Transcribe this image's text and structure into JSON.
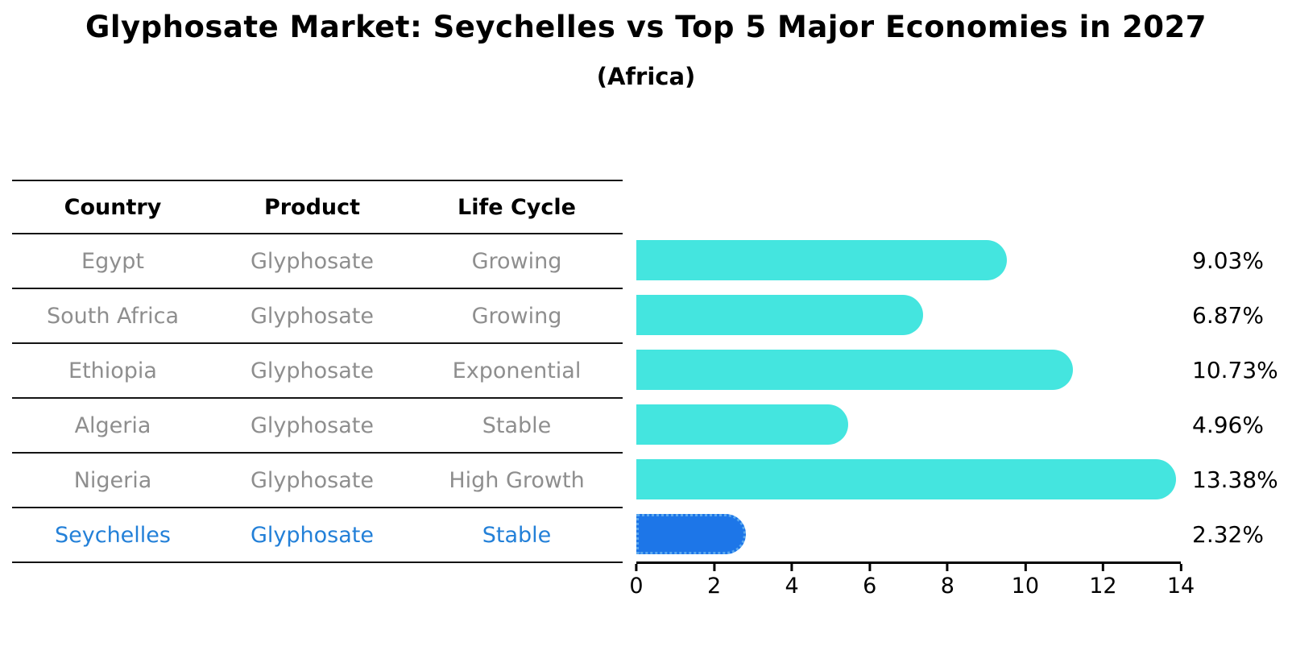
{
  "title": "Glyphosate Market: Seychelles vs Top 5 Major Economies in 2027",
  "subtitle": "(Africa)",
  "table": {
    "headers": [
      "Country",
      "Product",
      "Life Cycle"
    ],
    "rows": [
      {
        "country": "Egypt",
        "product": "Glyphosate",
        "life_cycle": "Growing",
        "highlight": false
      },
      {
        "country": "South Africa",
        "product": "Glyphosate",
        "life_cycle": "Growing",
        "highlight": false
      },
      {
        "country": "Ethiopia",
        "product": "Glyphosate",
        "life_cycle": "Exponential",
        "highlight": false
      },
      {
        "country": "Algeria",
        "product": "Glyphosate",
        "life_cycle": "Stable",
        "highlight": false
      },
      {
        "country": "Nigeria",
        "product": "Glyphosate",
        "life_cycle": "High Growth",
        "highlight": false
      },
      {
        "country": "Seychelles",
        "product": "Glyphosate",
        "life_cycle": "Stable",
        "highlight": true
      }
    ]
  },
  "chart_data": {
    "type": "bar",
    "orientation": "horizontal",
    "title": "Glyphosate Market: Seychelles vs Top 5 Major Economies in 2027",
    "subtitle": "(Africa)",
    "categories": [
      "Egypt",
      "South Africa",
      "Ethiopia",
      "Algeria",
      "Nigeria",
      "Seychelles"
    ],
    "values": [
      9.03,
      6.87,
      10.73,
      4.96,
      13.38,
      2.32
    ],
    "labels": [
      "9.03%",
      "6.87%",
      "10.73%",
      "4.96%",
      "13.38%",
      "2.32%"
    ],
    "xlim": [
      0,
      14
    ],
    "x_ticks": [
      0,
      2,
      4,
      6,
      8,
      10,
      12,
      14
    ],
    "highlight_index": 5,
    "grid": false,
    "legend": "none",
    "colors": {
      "bar_default": "#44e5df",
      "bar_highlight": "#1d76e8",
      "bar_highlight_border": "#5ba8ef",
      "highlight_text": "#2380d8",
      "body_text": "#8e8e8e",
      "axis_text": "#000000"
    }
  }
}
